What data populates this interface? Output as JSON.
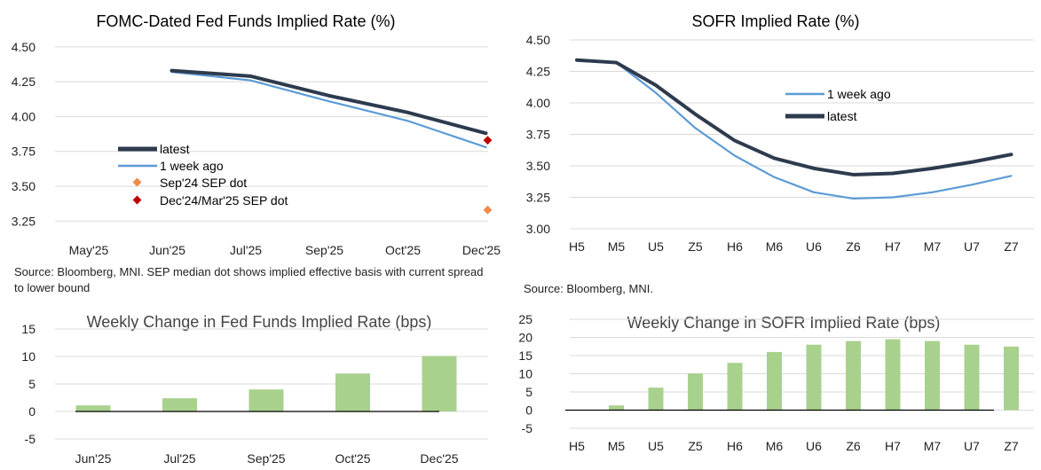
{
  "chart_data": [
    {
      "id": "fomc",
      "type": "line",
      "title": "FOMC-Dated Fed Funds Implied Rate (%)",
      "categories": [
        "May'25",
        "Jun'25",
        "Jul'25",
        "Sep'25",
        "Oct'25",
        "Dec'25"
      ],
      "ylim": [
        3.15,
        4.55
      ],
      "yticks": [
        "4.50",
        "4.25",
        "4.00",
        "3.75",
        "3.50",
        "3.25"
      ],
      "ytick_values": [
        4.5,
        4.25,
        4.0,
        3.75,
        3.5,
        3.25
      ],
      "grid": true,
      "series": [
        {
          "name": "latest",
          "values": [
            null,
            4.33,
            4.29,
            4.15,
            4.03,
            3.88
          ],
          "color": "#2e3b4e"
        },
        {
          "name": "1 week ago",
          "values": [
            null,
            4.32,
            4.26,
            4.11,
            3.97,
            3.78
          ],
          "color": "#5b9bd5"
        },
        {
          "name": "Sep'24 SEP dot",
          "values": [
            null,
            null,
            null,
            null,
            null,
            3.33
          ],
          "color": "#ed8a4c",
          "marker": "diamond"
        },
        {
          "name": "Dec'24/Mar'25 SEP dot",
          "values": [
            null,
            null,
            null,
            null,
            null,
            3.83
          ],
          "color": "#c00000",
          "marker": "diamond"
        }
      ],
      "legend_position": "center-left"
    },
    {
      "id": "sofr",
      "type": "line",
      "title": "SOFR Implied Rate (%)",
      "categories": [
        "H5",
        "M5",
        "U5",
        "Z5",
        "H6",
        "M6",
        "U6",
        "Z6",
        "H7",
        "M7",
        "U7",
        "Z7"
      ],
      "ylim": [
        3.0,
        4.5
      ],
      "yticks": [
        "4.50",
        "4.25",
        "4.00",
        "3.75",
        "3.50",
        "3.25",
        "3.00"
      ],
      "ytick_values": [
        4.5,
        4.25,
        4.0,
        3.75,
        3.5,
        3.25,
        3.0
      ],
      "grid": true,
      "series": [
        {
          "name": "1 week ago",
          "values": [
            4.34,
            4.32,
            4.08,
            3.8,
            3.58,
            3.41,
            3.29,
            3.24,
            3.25,
            3.29,
            3.35,
            3.42
          ],
          "color": "#5b9bd5"
        },
        {
          "name": "latest",
          "values": [
            4.34,
            4.32,
            4.14,
            3.91,
            3.7,
            3.56,
            3.48,
            3.43,
            3.44,
            3.48,
            3.53,
            3.59
          ],
          "color": "#2e3b4e"
        }
      ],
      "legend_position": "center"
    },
    {
      "id": "ffchg",
      "type": "bar",
      "title": "Weekly Change in Fed Funds Implied Rate (bps)",
      "categories": [
        "Jun'25",
        "Jul'25",
        "Sep'25",
        "Oct'25",
        "Dec'25"
      ],
      "values": [
        1.1,
        2.4,
        4.0,
        6.9,
        10.1
      ],
      "ylim": [
        -5,
        15
      ],
      "yticks": [
        "15",
        "10",
        "5",
        "0",
        "-5"
      ],
      "ytick_values": [
        15,
        10,
        5,
        0,
        -5
      ],
      "color": "#a9d18e",
      "grid": true
    },
    {
      "id": "sofrchg",
      "type": "bar",
      "title": "Weekly Change in SOFR Implied Rate (bps)",
      "categories": [
        "H5",
        "M5",
        "U5",
        "Z5",
        "H6",
        "M6",
        "U6",
        "Z6",
        "H7",
        "M7",
        "U7",
        "Z7"
      ],
      "values": [
        0,
        1.3,
        6.2,
        10.1,
        13.0,
        16.0,
        18.0,
        19.0,
        19.5,
        19.0,
        18.0,
        17.5
      ],
      "ylim": [
        -5,
        25
      ],
      "yticks": [
        "25",
        "20",
        "15",
        "10",
        "5",
        "0",
        "-5"
      ],
      "ytick_values": [
        25,
        20,
        15,
        10,
        5,
        0,
        -5
      ],
      "color": "#a9d18e",
      "grid": true
    }
  ],
  "sources": {
    "fomc": "Source: Bloomberg, MNI. SEP median dot shows implied effective basis with current spread to lower bound",
    "sofr": "Source: Bloomberg, MNI."
  }
}
